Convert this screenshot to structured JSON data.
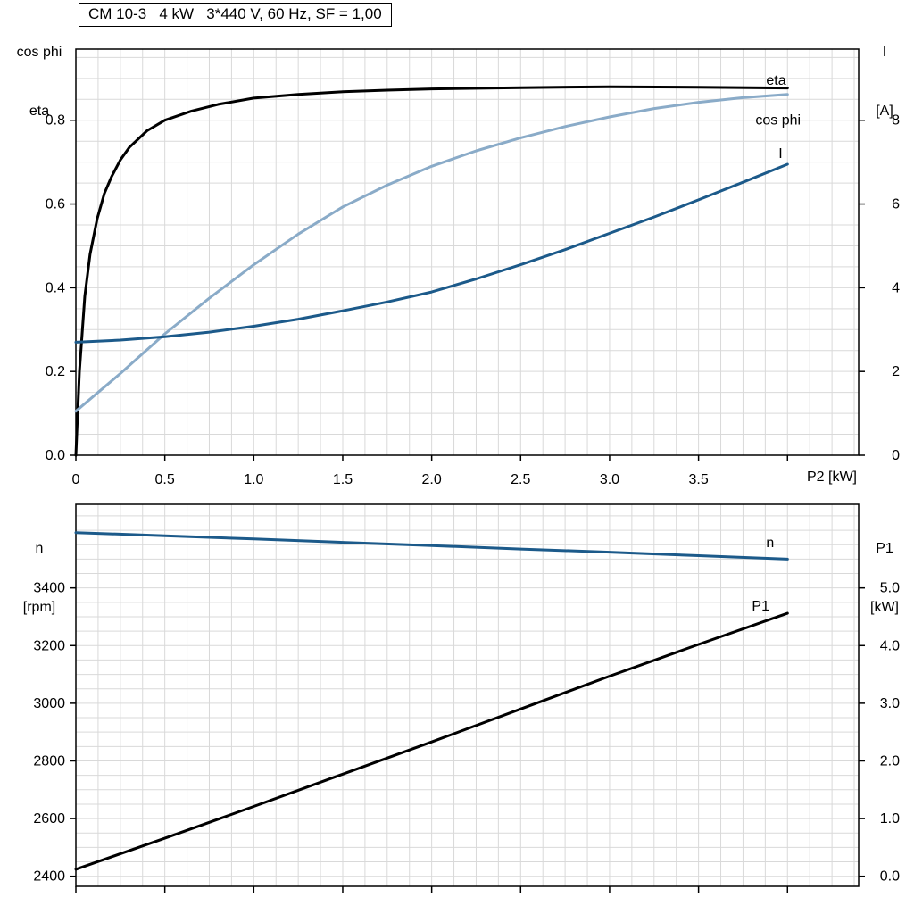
{
  "colors": {
    "black": "#000000",
    "dark_blue": "#1C5A8A",
    "light_blue": "#8AABC8",
    "grid": "#D9D9D9",
    "frame": "#000000",
    "background": "#FFFFFF"
  },
  "chart_data": [
    {
      "type": "line",
      "title": "CM 10-3   4 kW   3*440 V, 60 Hz, SF = 1,00",
      "xlabel": "P2 [kW]",
      "xlim": [
        0,
        4.4
      ],
      "x_ticks": [
        {
          "v": 0,
          "label": "0"
        },
        {
          "v": 0.5,
          "label": "0.5"
        },
        {
          "v": 1.0,
          "label": "1.0"
        },
        {
          "v": 1.5,
          "label": "1.5"
        },
        {
          "v": 2.0,
          "label": "2.0"
        },
        {
          "v": 2.5,
          "label": "2.5"
        },
        {
          "v": 3.0,
          "label": "3.0"
        },
        {
          "v": 3.5,
          "label": "3.5"
        },
        {
          "v": 4.0,
          "label": ""
        }
      ],
      "left_axis": {
        "label_lines": [
          "cos phi",
          "eta"
        ],
        "lim": [
          0,
          0.97
        ],
        "ticks": [
          {
            "v": 0.0,
            "label": "0.0"
          },
          {
            "v": 0.2,
            "label": "0.2"
          },
          {
            "v": 0.4,
            "label": "0.4"
          },
          {
            "v": 0.6,
            "label": "0.6"
          },
          {
            "v": 0.8,
            "label": "0.8"
          }
        ]
      },
      "right_axis": {
        "label_lines": [
          "I",
          "[A]"
        ],
        "lim": [
          0,
          9.7
        ],
        "ticks": [
          {
            "v": 0,
            "label": "0"
          },
          {
            "v": 2,
            "label": "2"
          },
          {
            "v": 4,
            "label": "4"
          },
          {
            "v": 6,
            "label": "6"
          },
          {
            "v": 8,
            "label": "8"
          }
        ]
      },
      "grid": {
        "x_step": 0.125,
        "y_step_left": 0.05
      },
      "series": [
        {
          "name": "eta",
          "axis": "left",
          "color_key": "black",
          "label": "eta",
          "label_at": [
            3.88,
            0.885
          ],
          "x": [
            0,
            0.02,
            0.05,
            0.08,
            0.12,
            0.16,
            0.2,
            0.25,
            0.3,
            0.4,
            0.5,
            0.65,
            0.8,
            1.0,
            1.25,
            1.5,
            1.75,
            2.0,
            2.5,
            3.0,
            3.5,
            4.0
          ],
          "y": [
            0,
            0.2,
            0.38,
            0.48,
            0.565,
            0.625,
            0.665,
            0.705,
            0.735,
            0.775,
            0.8,
            0.822,
            0.838,
            0.853,
            0.862,
            0.868,
            0.872,
            0.875,
            0.878,
            0.88,
            0.879,
            0.877
          ]
        },
        {
          "name": "cos phi",
          "axis": "left",
          "color_key": "light_blue",
          "label": "cos phi",
          "label_at": [
            3.82,
            0.79
          ],
          "x": [
            0,
            0.25,
            0.5,
            0.75,
            1.0,
            1.25,
            1.5,
            1.75,
            2.0,
            2.25,
            2.5,
            2.75,
            3.0,
            3.25,
            3.5,
            3.75,
            4.0
          ],
          "y": [
            0.105,
            0.195,
            0.29,
            0.375,
            0.455,
            0.528,
            0.593,
            0.645,
            0.69,
            0.727,
            0.758,
            0.785,
            0.808,
            0.828,
            0.843,
            0.854,
            0.862
          ]
        },
        {
          "name": "I",
          "axis": "right",
          "color_key": "dark_blue",
          "label": "I",
          "label_at": [
            3.95,
            7.1
          ],
          "x": [
            0,
            0.25,
            0.5,
            0.75,
            1.0,
            1.25,
            1.5,
            1.75,
            2.0,
            2.25,
            2.5,
            2.75,
            3.0,
            3.25,
            3.5,
            3.75,
            4.0
          ],
          "y": [
            2.7,
            2.75,
            2.83,
            2.94,
            3.08,
            3.25,
            3.45,
            3.66,
            3.9,
            4.21,
            4.55,
            4.91,
            5.3,
            5.69,
            6.1,
            6.52,
            6.95
          ]
        }
      ]
    },
    {
      "type": "line",
      "title": "",
      "xlabel": "",
      "xlim": [
        0,
        4.4
      ],
      "x_ticks": [
        {
          "v": 0,
          "label": ""
        },
        {
          "v": 0.5,
          "label": ""
        },
        {
          "v": 1.0,
          "label": ""
        },
        {
          "v": 1.5,
          "label": ""
        },
        {
          "v": 2.0,
          "label": ""
        },
        {
          "v": 2.5,
          "label": ""
        },
        {
          "v": 3.0,
          "label": ""
        },
        {
          "v": 3.5,
          "label": ""
        },
        {
          "v": 4.0,
          "label": ""
        }
      ],
      "left_axis": {
        "label_lines": [
          "n",
          "[rpm]"
        ],
        "lim": [
          2365,
          3690
        ],
        "ticks": [
          {
            "v": 2400,
            "label": "2400"
          },
          {
            "v": 2600,
            "label": "2600"
          },
          {
            "v": 2800,
            "label": "2800"
          },
          {
            "v": 3000,
            "label": "3000"
          },
          {
            "v": 3200,
            "label": "3200"
          },
          {
            "v": 3400,
            "label": "3400"
          }
        ]
      },
      "right_axis": {
        "label_lines": [
          "P1",
          "[kW]"
        ],
        "lim": [
          -0.175,
          6.45
        ],
        "ticks": [
          {
            "v": 0.0,
            "label": "0.0"
          },
          {
            "v": 1.0,
            "label": "1.0"
          },
          {
            "v": 2.0,
            "label": "2.0"
          },
          {
            "v": 3.0,
            "label": "3.0"
          },
          {
            "v": 4.0,
            "label": "4.0"
          },
          {
            "v": 5.0,
            "label": "5.0"
          }
        ]
      },
      "grid": {
        "x_step": 0.125,
        "y_step_left": 50
      },
      "series": [
        {
          "name": "n",
          "axis": "left",
          "color_key": "dark_blue",
          "label": "n",
          "label_at": [
            3.88,
            3541
          ],
          "x": [
            0,
            0.5,
            1.0,
            1.5,
            2.0,
            2.5,
            3.0,
            3.5,
            4.0
          ],
          "y": [
            3592,
            3581,
            3570,
            3558,
            3547,
            3535,
            3524,
            3512,
            3500
          ]
        },
        {
          "name": "P1",
          "axis": "right",
          "color_key": "black",
          "label": "P1",
          "label_at": [
            3.8,
            4.61
          ],
          "x": [
            0,
            0.5,
            1.0,
            1.5,
            2.0,
            2.5,
            3.0,
            3.5,
            4.0
          ],
          "y": [
            0.12,
            0.66,
            1.21,
            1.77,
            2.33,
            2.9,
            3.47,
            4.02,
            4.56
          ]
        }
      ]
    }
  ]
}
